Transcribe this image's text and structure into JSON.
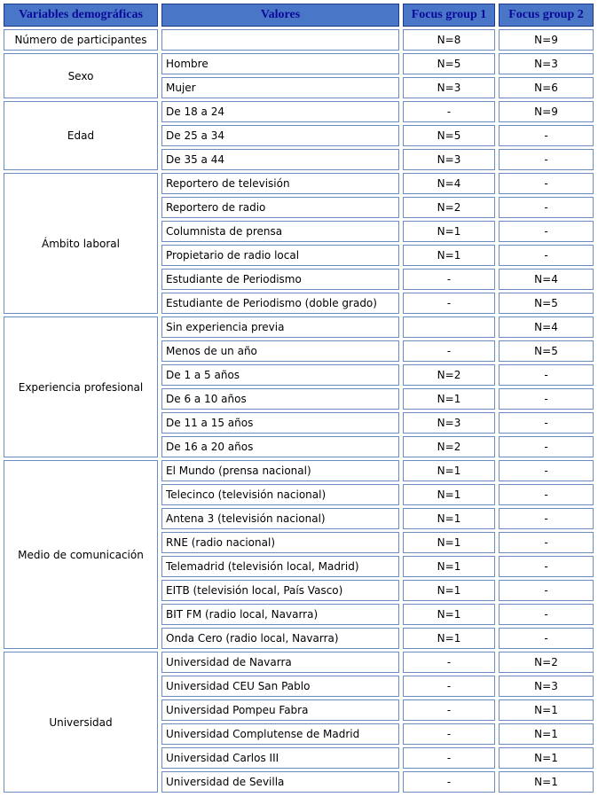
{
  "header": [
    "Variables demográficas",
    "Valores",
    "Focus group 1",
    "Focus group 2"
  ],
  "groups": [
    {
      "label": "Número de participantes",
      "rows": [
        [
          null,
          "N=8",
          "N=9"
        ]
      ]
    },
    {
      "label": "Sexo",
      "rows": [
        [
          "Hombre",
          "N=5",
          "N=3"
        ],
        [
          "Mujer",
          "N=3",
          "N=6"
        ]
      ]
    },
    {
      "label": "Edad",
      "rows": [
        [
          "De 18 a 24",
          "-",
          "N=9"
        ],
        [
          "De 25 a 34",
          "N=5",
          "-"
        ],
        [
          "De 35 a 44",
          "N=3",
          "-"
        ]
      ]
    },
    {
      "label": "Ámbito laboral",
      "rows": [
        [
          "Reportero de televisión",
          "N=4",
          "-"
        ],
        [
          "Reportero de radio",
          "N=2",
          "-"
        ],
        [
          "Columnista de prensa",
          "N=1",
          "-"
        ],
        [
          "Propietario de radio local",
          "N=1",
          "-"
        ],
        [
          "Estudiante de Periodismo",
          "-",
          "N=4"
        ],
        [
          "Estudiante de Periodismo (doble grado)",
          "-",
          "N=5"
        ]
      ]
    },
    {
      "label": "Experiencia profesional",
      "rows": [
        [
          "Sin experiencia previa",
          null,
          "N=4"
        ],
        [
          "Menos de un año",
          "-",
          "N=5"
        ],
        [
          "De 1 a 5 años",
          "N=2",
          "-"
        ],
        [
          "De 6 a 10 años",
          "N=1",
          "-"
        ],
        [
          "De 11 a 15 años",
          "N=3",
          "-"
        ],
        [
          "De 16 a 20 años",
          "N=2",
          "-"
        ]
      ]
    },
    {
      "label": "Medio de comunicación",
      "rows": [
        [
          "El Mundo (prensa nacional)",
          "N=1",
          "-"
        ],
        [
          "Telecinco (televisión nacional)",
          "N=1",
          "-"
        ],
        [
          "Antena 3 (televisión nacional)",
          "N=1",
          "-"
        ],
        [
          "RNE (radio nacional)",
          "N=1",
          "-"
        ],
        [
          "Telemadrid (televisión local, Madrid)",
          "N=1",
          "-"
        ],
        [
          "EITB (televisión local, País Vasco)",
          "N=1",
          "-"
        ],
        [
          "BIT FM (radio local, Navarra)",
          "N=1",
          "-"
        ],
        [
          "Onda Cero (radio local, Navarra)",
          "N=1",
          "-"
        ]
      ]
    },
    {
      "label": "Universidad",
      "rows": [
        [
          "Universidad de Navarra",
          "-",
          "N=2"
        ],
        [
          "Universidad CEU San Pablo",
          "-",
          "N=3"
        ],
        [
          "Universidad Pompeu Fabra",
          "-",
          "N=1"
        ],
        [
          "Universidad Complutense de Madrid",
          "-",
          "N=1"
        ],
        [
          "Universidad Carlos III",
          "-",
          "N=1"
        ],
        [
          "Universidad de Sevilla",
          "-",
          "N=1"
        ]
      ]
    }
  ]
}
